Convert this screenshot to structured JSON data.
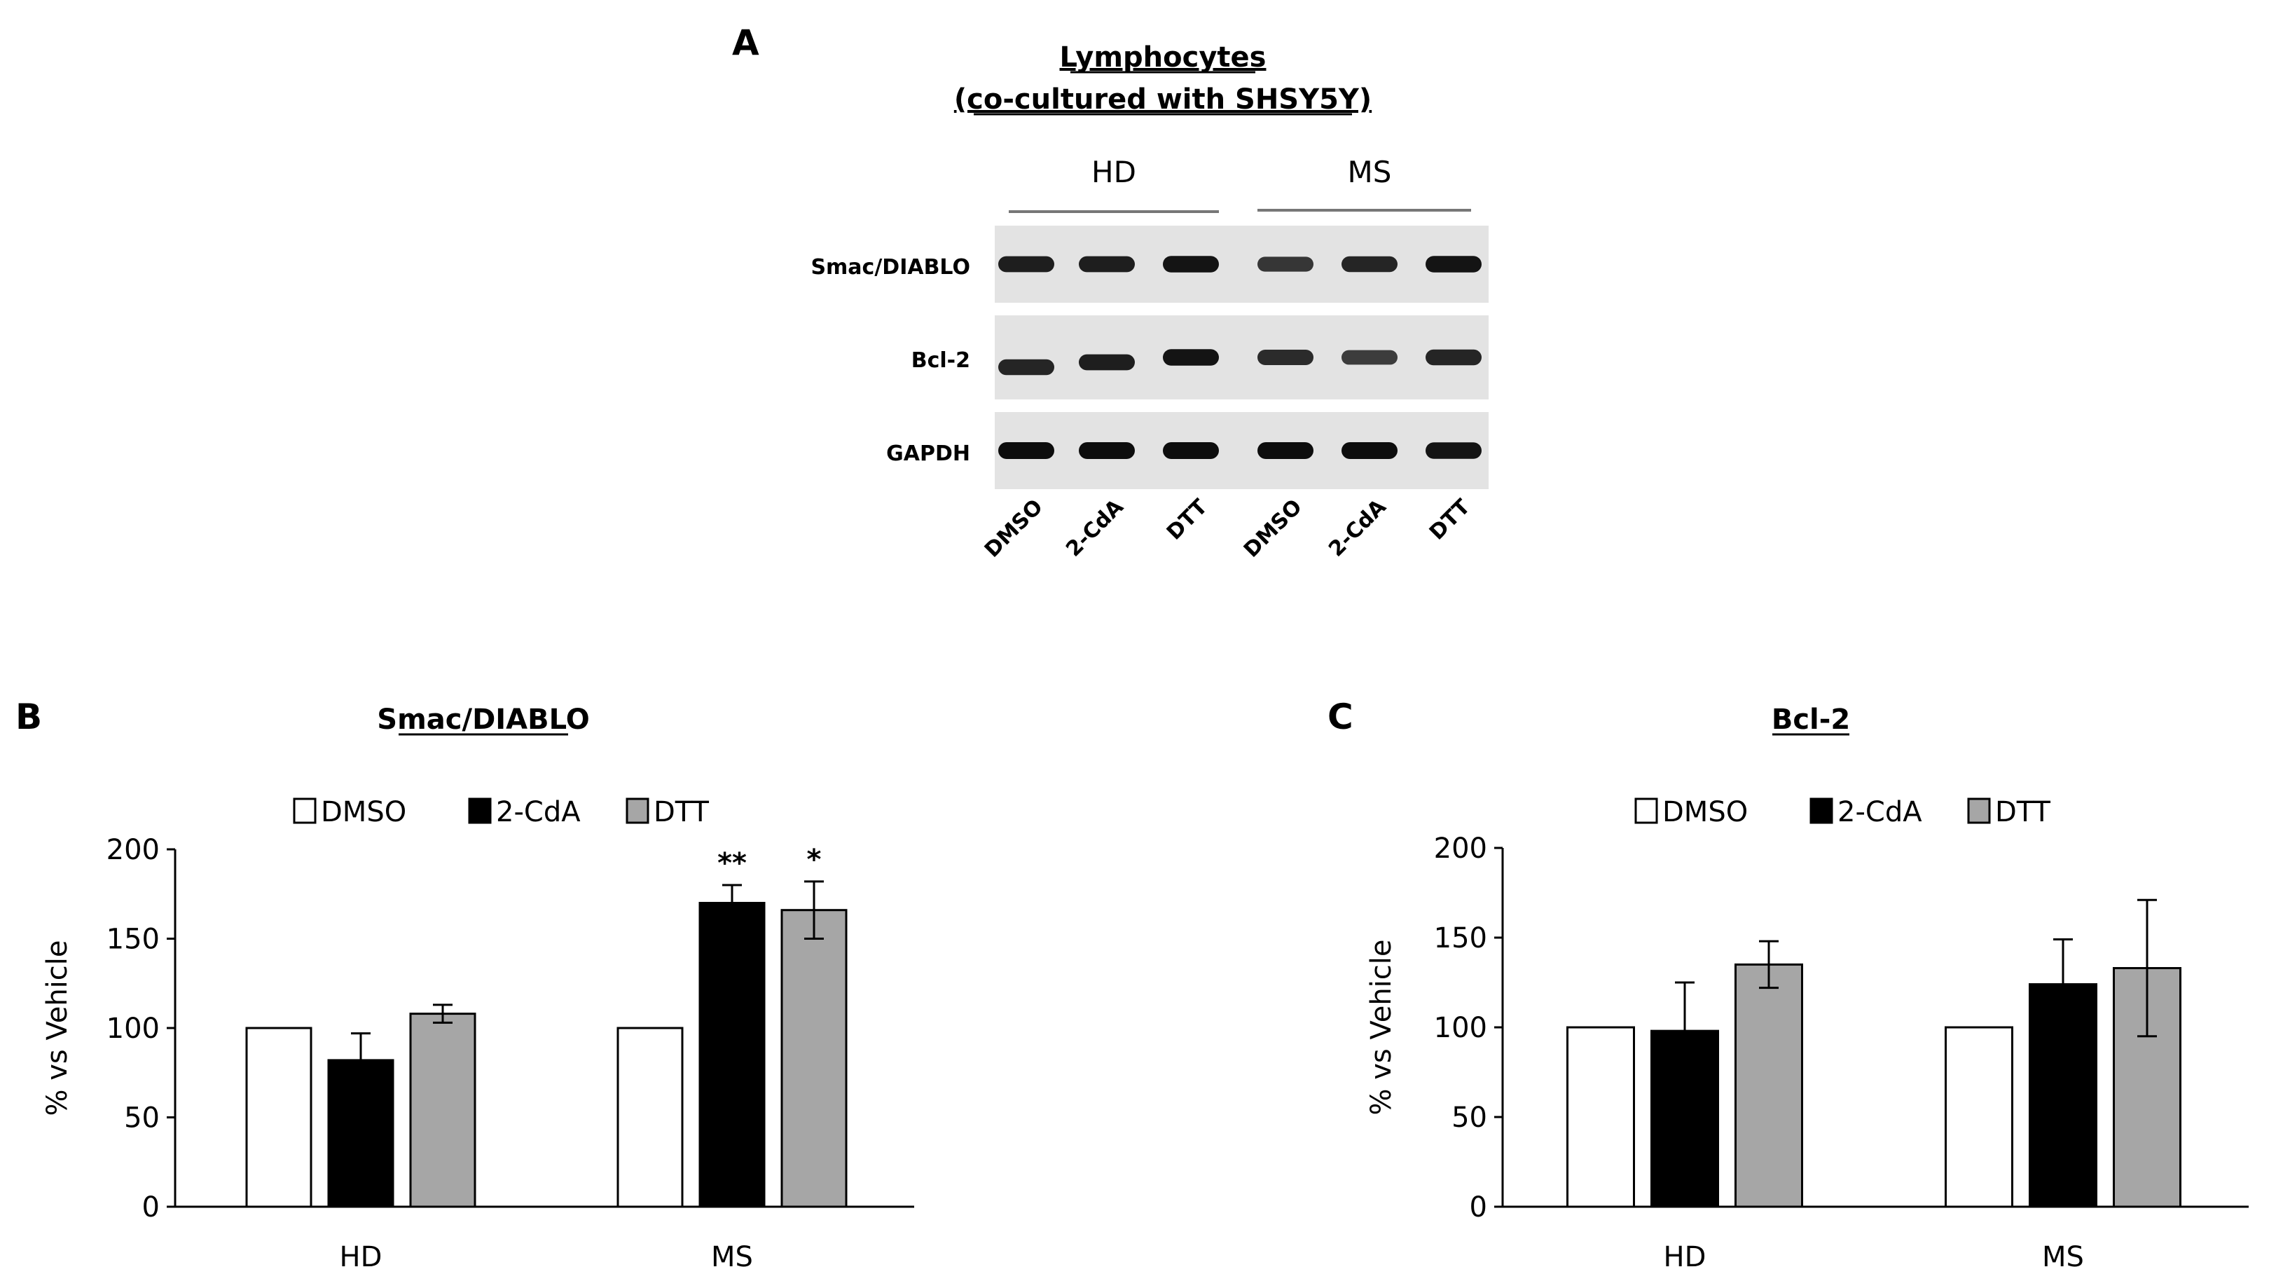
{
  "panel_a": {
    "letter": "A",
    "title_line1": "Lymphocytes",
    "title_line2": "(co-cultured with SHSY5Y)",
    "groups": [
      "HD",
      "MS"
    ],
    "lanes": [
      "DMSO",
      "2-CdA",
      "DTT",
      "DMSO",
      "2-CdA",
      "DTT"
    ],
    "blots": [
      {
        "label": "Smac/DIABLO",
        "band_intensity": [
          0.85,
          0.85,
          0.95,
          0.65,
          0.8,
          0.95
        ]
      },
      {
        "label": "Bcl-2",
        "band_intensity": [
          0.8,
          0.85,
          0.95,
          0.75,
          0.6,
          0.8
        ]
      },
      {
        "label": "GAPDH",
        "band_intensity": [
          1.0,
          1.0,
          1.0,
          1.0,
          1.0,
          0.95
        ]
      }
    ]
  },
  "chart_data": [
    {
      "type": "bar",
      "panel": "B",
      "title": "Smac/DIABLO",
      "ylabel": "% vs Vehicle",
      "xlabel": "",
      "categories": [
        "HD",
        "MS"
      ],
      "ylim": [
        0,
        200
      ],
      "yticks": [
        0,
        50,
        100,
        150,
        200
      ],
      "legend_position": "top",
      "series": [
        {
          "name": "DMSO",
          "color": "#ffffff",
          "values": [
            100,
            100
          ],
          "errors": [
            0,
            0
          ]
        },
        {
          "name": "2-CdA",
          "color": "#000000",
          "values": [
            82,
            170
          ],
          "errors": [
            15,
            10
          ]
        },
        {
          "name": "DTT",
          "color": "#a6a6a6",
          "values": [
            108,
            166
          ],
          "errors": [
            5,
            16
          ]
        }
      ],
      "annotations": [
        {
          "category": "MS",
          "series": "2-CdA",
          "text": "**"
        },
        {
          "category": "MS",
          "series": "DTT",
          "text": "*"
        }
      ]
    },
    {
      "type": "bar",
      "panel": "C",
      "title": "Bcl-2",
      "ylabel": "% vs Vehicle",
      "xlabel": "",
      "categories": [
        "HD",
        "MS"
      ],
      "ylim": [
        0,
        200
      ],
      "yticks": [
        0,
        50,
        100,
        150,
        200
      ],
      "legend_position": "top",
      "series": [
        {
          "name": "DMSO",
          "color": "#ffffff",
          "values": [
            100,
            100
          ],
          "errors": [
            0,
            0
          ]
        },
        {
          "name": "2-CdA",
          "color": "#000000",
          "values": [
            98,
            124
          ],
          "errors": [
            27,
            25
          ]
        },
        {
          "name": "DTT",
          "color": "#a6a6a6",
          "values": [
            135,
            133
          ],
          "errors": [
            13,
            38
          ]
        }
      ],
      "annotations": []
    }
  ]
}
